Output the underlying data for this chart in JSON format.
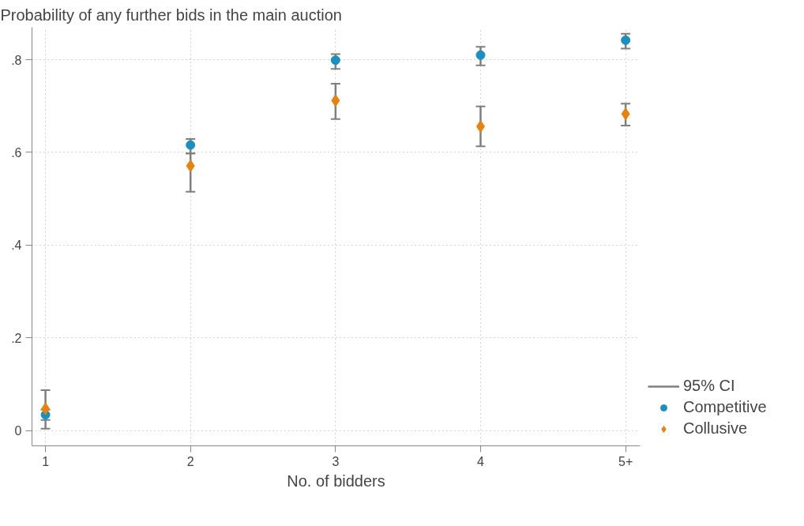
{
  "chart_data": {
    "type": "scatter",
    "title": "Probability of any further bids in the main auction",
    "xlabel": "No. of bidders",
    "categories": [
      "1",
      "2",
      "3",
      "4",
      "5+"
    ],
    "series": [
      {
        "name": "Competitive",
        "color": "#1a8fc1",
        "marker": "circle",
        "values": [
          0.034,
          0.616,
          0.799,
          0.81,
          0.842
        ],
        "errors": [
          [
            0.023,
            0.045
          ],
          [
            0.598,
            0.629
          ],
          [
            0.78,
            0.812
          ],
          [
            0.788,
            0.828
          ],
          [
            0.824,
            0.856
          ]
        ]
      },
      {
        "name": "Collusive",
        "color": "#e8820c",
        "marker": "diamond",
        "values": [
          0.047,
          0.571,
          0.712,
          0.656,
          0.683
        ],
        "errors": [
          [
            0.004,
            0.087
          ],
          [
            0.515,
            0.598
          ],
          [
            0.672,
            0.748
          ],
          [
            0.613,
            0.699
          ],
          [
            0.658,
            0.705
          ]
        ]
      }
    ],
    "annotations": [
      "95% CI"
    ],
    "ylim": [
      -0.033,
      0.87
    ],
    "yticks": [
      {
        "value": 0,
        "label": "0"
      },
      {
        "value": 0.2,
        "label": ".2"
      },
      {
        "value": 0.4,
        "label": ".4"
      },
      {
        "value": 0.6,
        "label": ".6"
      },
      {
        "value": 0.8,
        "label": ".8"
      }
    ],
    "grid": true,
    "legend": "right"
  }
}
